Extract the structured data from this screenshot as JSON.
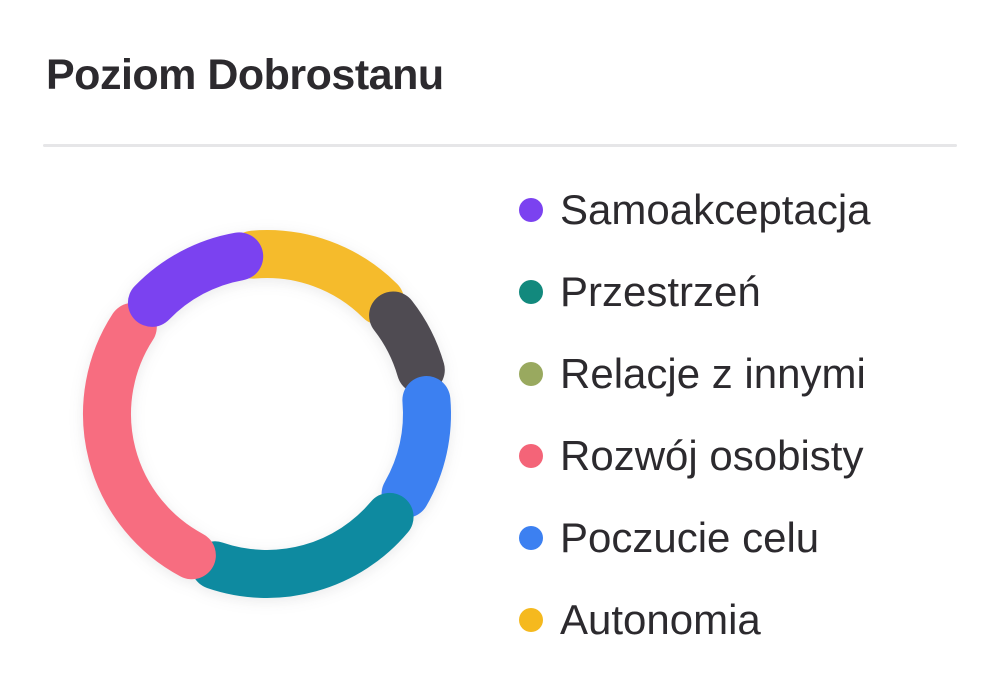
{
  "title": "Poziom Dobrostanu",
  "theme": {
    "background": "#ffffff",
    "text_color": "#2c2a2e",
    "divider_color": "#e6e6e8"
  },
  "chart_data": {
    "type": "donut",
    "title": "Poziom Dobrostanu",
    "track_color": "#f1f1f2",
    "legend_position": "right",
    "angle_unit": "degrees_clockwise_from_top",
    "segments": [
      {
        "label": "Autonomia",
        "color": "#f5bb2c",
        "start_deg": -5,
        "end_deg": 45,
        "span_deg": 50
      },
      {
        "label": "Relacje z innymi",
        "color": "#4f4b52",
        "start_deg": 52,
        "end_deg": 74,
        "span_deg": 22
      },
      {
        "label": "Poczucie celu",
        "color": "#3c80f1",
        "start_deg": 85,
        "end_deg": 120,
        "span_deg": 35
      },
      {
        "label": "Przestrzeń",
        "color": "#0e8aa0",
        "start_deg": 130,
        "end_deg": 199,
        "span_deg": 69
      },
      {
        "label": "Rozwój osobisty",
        "color": "#f76d80",
        "start_deg": 208,
        "end_deg": 303,
        "span_deg": 95
      },
      {
        "label": "Samoakceptacja",
        "color": "#7b42f0",
        "start_deg": 314,
        "end_deg": 350,
        "span_deg": 36
      }
    ]
  },
  "legend": {
    "items": [
      {
        "label": "Samoakceptacja",
        "color": "#7b42f0"
      },
      {
        "label": "Przestrzeń",
        "color": "#12897d"
      },
      {
        "label": "Relacje z innymi",
        "color": "#99a95f"
      },
      {
        "label": "Rozwój osobisty",
        "color": "#f46478"
      },
      {
        "label": "Poczucie celu",
        "color": "#3c80f1"
      },
      {
        "label": "Autonomia",
        "color": "#f5b91e"
      }
    ]
  }
}
